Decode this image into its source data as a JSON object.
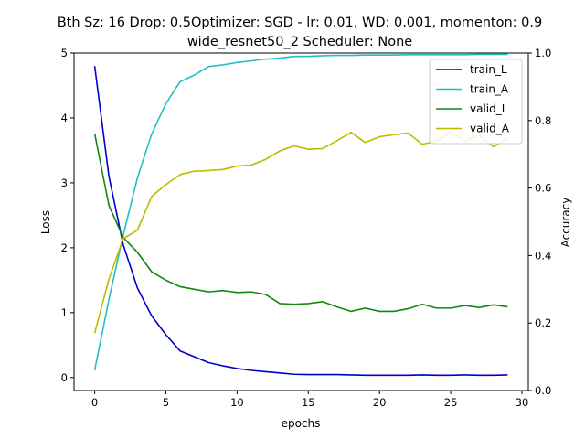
{
  "chart_data": {
    "type": "line",
    "title_line1": "Bth Sz: 16 Drop: 0.5Optimizer: SGD - lr: 0.01, WD: 0.001, momenton: 0.9",
    "title_line2": "wide_resnet50_2 Scheduler: None",
    "xlabel": "epochs",
    "ylabel_left": "Loss",
    "ylabel_right": "Accuracy",
    "xlim": [
      -1.45,
      30.45
    ],
    "ylim_left": [
      -0.2,
      5.0
    ],
    "ylim_right": [
      0.0,
      1.0
    ],
    "x_ticks": [
      0,
      5,
      10,
      15,
      20,
      25,
      30
    ],
    "y_ticks_left": [
      0,
      1,
      2,
      3,
      4,
      5
    ],
    "y_ticks_right": [
      0.0,
      0.2,
      0.4,
      0.6,
      0.8,
      1.0
    ],
    "legend_position": "top-right",
    "x": [
      0,
      1,
      2,
      3,
      4,
      5,
      6,
      7,
      8,
      9,
      10,
      11,
      12,
      13,
      14,
      15,
      16,
      17,
      18,
      19,
      20,
      21,
      22,
      23,
      24,
      25,
      26,
      27,
      28,
      29
    ],
    "series": [
      {
        "name": "train_L",
        "axis": "left",
        "color": "#0000cc",
        "values": [
          4.8,
          3.1,
          2.05,
          1.38,
          0.95,
          0.66,
          0.41,
          0.32,
          0.23,
          0.18,
          0.14,
          0.11,
          0.09,
          0.07,
          0.05,
          0.045,
          0.045,
          0.045,
          0.04,
          0.035,
          0.035,
          0.035,
          0.035,
          0.04,
          0.035,
          0.035,
          0.04,
          0.035,
          0.035,
          0.04
        ]
      },
      {
        "name": "train_A",
        "axis": "right",
        "color": "#20c0c0",
        "values": [
          0.06,
          0.27,
          0.46,
          0.63,
          0.76,
          0.85,
          0.915,
          0.935,
          0.96,
          0.965,
          0.972,
          0.977,
          0.982,
          0.985,
          0.99,
          0.99,
          0.992,
          0.993,
          0.993,
          0.994,
          0.994,
          0.994,
          0.995,
          0.995,
          0.995,
          0.995,
          0.995,
          0.996,
          0.996,
          0.996
        ]
      },
      {
        "name": "valid_L",
        "axis": "left",
        "color": "#118811",
        "values": [
          3.76,
          2.65,
          2.16,
          1.93,
          1.63,
          1.5,
          1.4,
          1.36,
          1.32,
          1.34,
          1.31,
          1.32,
          1.28,
          1.14,
          1.13,
          1.14,
          1.17,
          1.09,
          1.02,
          1.07,
          1.02,
          1.02,
          1.06,
          1.13,
          1.07,
          1.07,
          1.11,
          1.08,
          1.12,
          1.09
        ]
      },
      {
        "name": "valid_A",
        "axis": "right",
        "color": "#bbbb00",
        "values": [
          0.17,
          0.33,
          0.45,
          0.475,
          0.575,
          0.61,
          0.64,
          0.65,
          0.652,
          0.655,
          0.665,
          0.668,
          0.685,
          0.71,
          0.725,
          0.715,
          0.717,
          0.74,
          0.765,
          0.735,
          0.752,
          0.758,
          0.763,
          0.73,
          0.738,
          0.765,
          0.74,
          0.757,
          0.722,
          0.748
        ]
      }
    ]
  }
}
